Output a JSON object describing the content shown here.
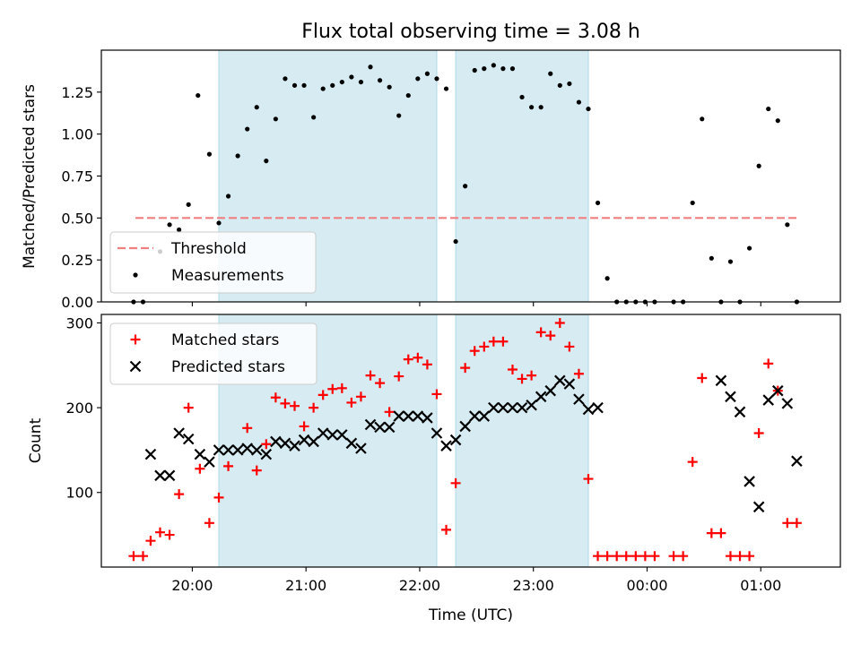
{
  "chart_data": [
    {
      "type": "scatter",
      "title": "Flux total observing time = 3.08 h",
      "xlabel": "",
      "ylabel": "Matched/Predicted stars",
      "xlim": [
        "19:12",
        "01:42"
      ],
      "ylim": [
        0,
        1.5
      ],
      "yticks": [
        0.0,
        0.25,
        0.5,
        0.75,
        1.0,
        1.25
      ],
      "ytick_labels": [
        "0.00",
        "0.25",
        "0.50",
        "0.75",
        "1.00",
        "1.25"
      ],
      "legend": {
        "position": "lower-left",
        "entries": [
          "Threshold",
          "Measurements"
        ]
      },
      "shaded_intervals": [
        [
          "20:14",
          "22:09"
        ],
        [
          "22:19",
          "23:29"
        ]
      ],
      "series": [
        {
          "name": "Threshold",
          "style": "dashed-line",
          "color": "#f08080",
          "x": [
            "19:30",
            "01:20"
          ],
          "y": [
            0.5,
            0.5
          ]
        },
        {
          "name": "Measurements",
          "style": "dot",
          "color": "#000000",
          "x": [
            "19:29",
            "19:34",
            "19:43",
            "19:48",
            "19:53",
            "19:58",
            "20:03",
            "20:09",
            "20:14",
            "20:19",
            "20:24",
            "20:29",
            "20:34",
            "20:39",
            "20:44",
            "20:49",
            "20:54",
            "20:59",
            "21:04",
            "21:09",
            "21:14",
            "21:19",
            "21:24",
            "21:29",
            "21:34",
            "21:39",
            "21:44",
            "21:49",
            "21:54",
            "21:59",
            "22:04",
            "22:09",
            "22:14",
            "22:19",
            "22:24",
            "22:29",
            "22:34",
            "22:39",
            "22:44",
            "22:49",
            "22:54",
            "22:59",
            "23:04",
            "23:09",
            "23:14",
            "23:19",
            "23:24",
            "23:29",
            "23:34",
            "23:39",
            "23:44",
            "23:49",
            "23:54",
            "23:59",
            "00:04",
            "00:14",
            "00:19",
            "00:24",
            "00:29",
            "00:34",
            "00:39",
            "00:44",
            "00:49",
            "00:54",
            "00:59",
            "01:04",
            "01:09",
            "01:14",
            "01:19"
          ],
          "y": [
            0.0,
            0.0,
            0.3,
            0.46,
            0.43,
            0.58,
            1.23,
            0.88,
            0.47,
            0.63,
            0.87,
            1.03,
            1.16,
            0.84,
            1.09,
            1.33,
            1.29,
            1.29,
            1.1,
            1.27,
            1.29,
            1.31,
            1.34,
            1.31,
            1.4,
            1.32,
            1.28,
            1.11,
            1.23,
            1.33,
            1.36,
            1.33,
            1.27,
            0.36,
            0.69,
            1.38,
            1.39,
            1.41,
            1.39,
            1.39,
            1.22,
            1.16,
            1.16,
            1.36,
            1.29,
            1.3,
            1.19,
            1.15,
            0.59,
            0.14,
            0.0,
            0.0,
            0.0,
            0.0,
            0.0,
            0.0,
            0.0,
            0.59,
            1.09,
            0.26,
            0.0,
            0.24,
            0.0,
            0.32,
            0.81,
            1.15,
            1.08,
            0.46,
            0.0
          ]
        }
      ]
    },
    {
      "type": "scatter",
      "title": "",
      "xlabel": "Time (UTC)",
      "ylabel": "Count",
      "xlim": [
        "19:12",
        "01:42"
      ],
      "ylim": [
        12,
        310
      ],
      "yticks": [
        100,
        200,
        300
      ],
      "ytick_labels": [
        "100",
        "200",
        "300"
      ],
      "xticks": [
        "20:00",
        "21:00",
        "22:00",
        "23:00",
        "00:00",
        "01:00"
      ],
      "legend": {
        "position": "upper-left",
        "entries": [
          "Matched stars",
          "Predicted stars"
        ]
      },
      "shaded_intervals": [
        [
          "20:14",
          "22:09"
        ],
        [
          "22:19",
          "23:29"
        ]
      ],
      "series": [
        {
          "name": "Matched stars",
          "marker": "plus",
          "color": "#ff0000",
          "x": [
            "19:29",
            "19:34",
            "19:38",
            "19:43",
            "19:48",
            "19:53",
            "19:58",
            "20:04",
            "20:09",
            "20:14",
            "20:19",
            "20:29",
            "20:34",
            "20:39",
            "20:44",
            "20:49",
            "20:54",
            "20:59",
            "21:04",
            "21:09",
            "21:14",
            "21:19",
            "21:24",
            "21:29",
            "21:34",
            "21:39",
            "21:44",
            "21:49",
            "21:54",
            "21:59",
            "22:04",
            "22:09",
            "22:14",
            "22:19",
            "22:24",
            "22:29",
            "22:34",
            "22:39",
            "22:44",
            "22:49",
            "22:54",
            "22:59",
            "23:04",
            "23:09",
            "23:14",
            "23:19",
            "23:24",
            "23:29",
            "23:34",
            "23:39",
            "23:44",
            "23:49",
            "23:54",
            "23:59",
            "00:04",
            "00:14",
            "00:19",
            "00:24",
            "00:29",
            "00:34",
            "00:39",
            "00:44",
            "00:49",
            "00:54",
            "00:59",
            "01:04",
            "01:09",
            "01:14",
            "01:19"
          ],
          "y": [
            25,
            25,
            43,
            53,
            50,
            98,
            200,
            128,
            64,
            94,
            131,
            176,
            126,
            157,
            212,
            205,
            202,
            178,
            200,
            215,
            222,
            223,
            206,
            213,
            238,
            229,
            195,
            237,
            257,
            259,
            251,
            216,
            56,
            111,
            247,
            267,
            272,
            278,
            278,
            245,
            234,
            238,
            289,
            285,
            300,
            272,
            240,
            116,
            25,
            25,
            25,
            25,
            25,
            25,
            25,
            25,
            25,
            136,
            235,
            52,
            52,
            25,
            25,
            25,
            170,
            252,
            220,
            64,
            64
          ]
        },
        {
          "name": "Predicted stars",
          "marker": "x",
          "color": "#000000",
          "x": [
            "19:38",
            "19:43",
            "19:48",
            "19:53",
            "19:58",
            "20:04",
            "20:09",
            "20:14",
            "20:19",
            "20:24",
            "20:29",
            "20:34",
            "20:39",
            "20:44",
            "20:49",
            "20:54",
            "20:59",
            "21:04",
            "21:09",
            "21:14",
            "21:19",
            "21:24",
            "21:29",
            "21:34",
            "21:39",
            "21:44",
            "21:49",
            "21:54",
            "21:59",
            "22:04",
            "22:09",
            "22:14",
            "22:19",
            "22:24",
            "22:29",
            "22:34",
            "22:39",
            "22:44",
            "22:49",
            "22:54",
            "22:59",
            "23:04",
            "23:09",
            "23:14",
            "23:19",
            "23:24",
            "23:29",
            "23:34",
            "00:39",
            "00:44",
            "00:49",
            "00:54",
            "00:59",
            "01:04",
            "01:09",
            "01:14",
            "01:19"
          ],
          "y": [
            145,
            120,
            120,
            170,
            163,
            145,
            136,
            150,
            150,
            150,
            152,
            150,
            145,
            160,
            158,
            155,
            162,
            160,
            170,
            168,
            168,
            158,
            152,
            180,
            177,
            177,
            190,
            190,
            190,
            188,
            170,
            155,
            162,
            178,
            190,
            190,
            200,
            200,
            200,
            200,
            203,
            213,
            220,
            232,
            228,
            210,
            198,
            200,
            232,
            213,
            195,
            113,
            83,
            209,
            220,
            205,
            137
          ]
        }
      ]
    }
  ]
}
